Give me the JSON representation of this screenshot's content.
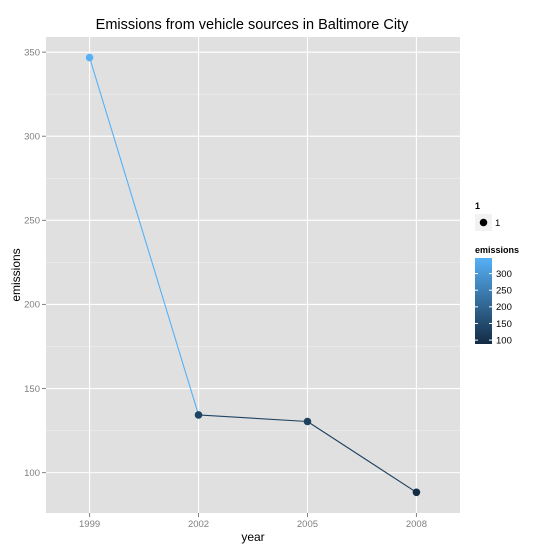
{
  "chart_data": {
    "type": "line",
    "title": "Emissions from vehicle sources in Baltimore City",
    "xlabel": "year",
    "ylabel": "emissions",
    "x": [
      1999,
      2002,
      2005,
      2008
    ],
    "x_tick_labels": [
      "1999",
      "2002",
      "2005",
      "2008"
    ],
    "y_tick_values": [
      100,
      150,
      200,
      250,
      300,
      350
    ],
    "y_tick_labels": [
      "100",
      "150",
      "200",
      "250",
      "300",
      "350"
    ],
    "series": [
      {
        "values": [
          346.8,
          134.3,
          130.4,
          88.3
        ]
      }
    ],
    "xlim": [
      1997.8,
      2009.2
    ],
    "ylim": [
      76,
      359
    ],
    "grid": true,
    "legend_placement": "right",
    "legends": {
      "shape": {
        "title": "1",
        "entry_label": "1"
      },
      "color": {
        "title": "emissions",
        "tick_values": [
          100,
          150,
          200,
          250,
          300
        ],
        "tick_labels": [
          "100",
          "150",
          "200",
          "250",
          "300"
        ],
        "range": [
          88.3,
          346.8
        ],
        "low_color": "#132B43",
        "high_color": "#56B1F7"
      }
    },
    "colors": {
      "panel_background": "#e0e0e0",
      "grid_line": "#ffffff"
    }
  }
}
